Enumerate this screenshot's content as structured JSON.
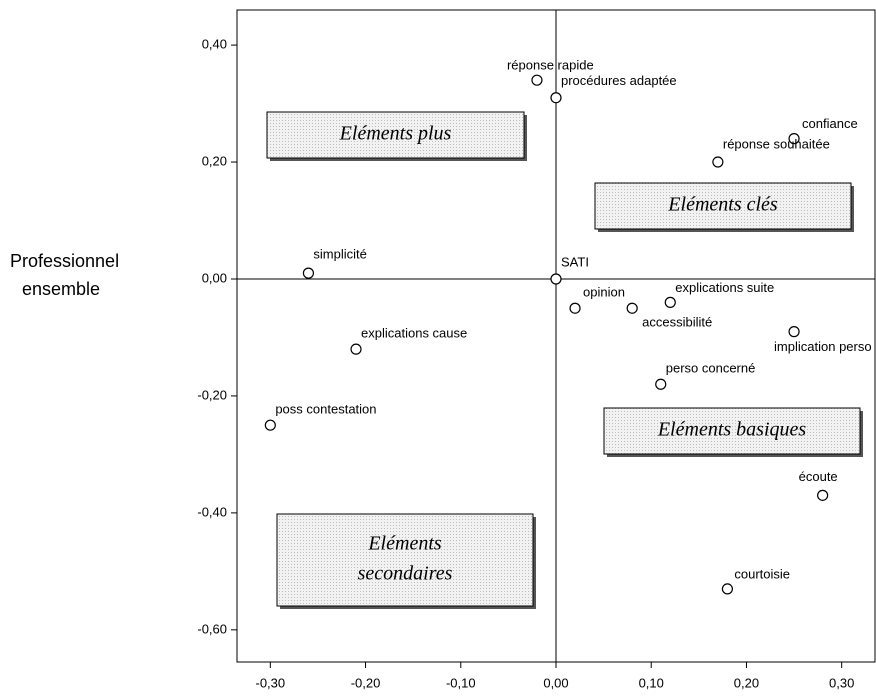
{
  "chart_data": {
    "type": "scatter",
    "y_label": [
      "Professionnel",
      "ensemble"
    ],
    "x": [
      -0.02,
      0,
      0.25,
      0.17,
      -0.26,
      0,
      0.02,
      0.08,
      0.12,
      0.25,
      -0.21,
      0.11,
      -0.3,
      0.28,
      0.18
    ],
    "values": [
      0.34,
      0.31,
      0.24,
      0.2,
      0.01,
      0,
      -0.05,
      -0.05,
      -0.04,
      -0.09,
      -0.12,
      -0.18,
      -0.25,
      -0.37,
      -0.53
    ],
    "point_labels": [
      "réponse rapide",
      "procédures adaptée",
      "confiance",
      "réponse souhaitée",
      "simplicité",
      "SATI",
      "opinion",
      "accessibilité",
      "explications suite",
      "implication perso",
      "explications cause",
      "perso concerné",
      "poss contestation",
      "écoute",
      "courtoisie"
    ],
    "xlim": [
      -0.335,
      0.335
    ],
    "ylim": [
      -0.655,
      0.46
    ],
    "xticks": [
      {
        "value": -0.3,
        "label": "-0,30"
      },
      {
        "value": -0.2,
        "label": "-0,20"
      },
      {
        "value": -0.1,
        "label": "-0,10"
      },
      {
        "value": 0,
        "label": "0,00"
      },
      {
        "value": 0.1,
        "label": "0,10"
      },
      {
        "value": 0.2,
        "label": "0,20"
      },
      {
        "value": 0.3,
        "label": "0,30"
      }
    ],
    "yticks": [
      {
        "value": 0.4,
        "label": "0,40"
      },
      {
        "value": 0.2,
        "label": "0,20"
      },
      {
        "value": 0,
        "label": "0,00"
      },
      {
        "value": -0.2,
        "label": "-0,20"
      },
      {
        "value": -0.4,
        "label": "-0,40"
      },
      {
        "value": -0.6,
        "label": "-0,60"
      }
    ],
    "reference_lines": true,
    "quadrant_labels": [
      [
        "Eléments plus"
      ],
      [
        "Eléments clés"
      ],
      [
        "Eléments basiques"
      ],
      [
        "Eléments",
        "secondaires"
      ]
    ]
  }
}
